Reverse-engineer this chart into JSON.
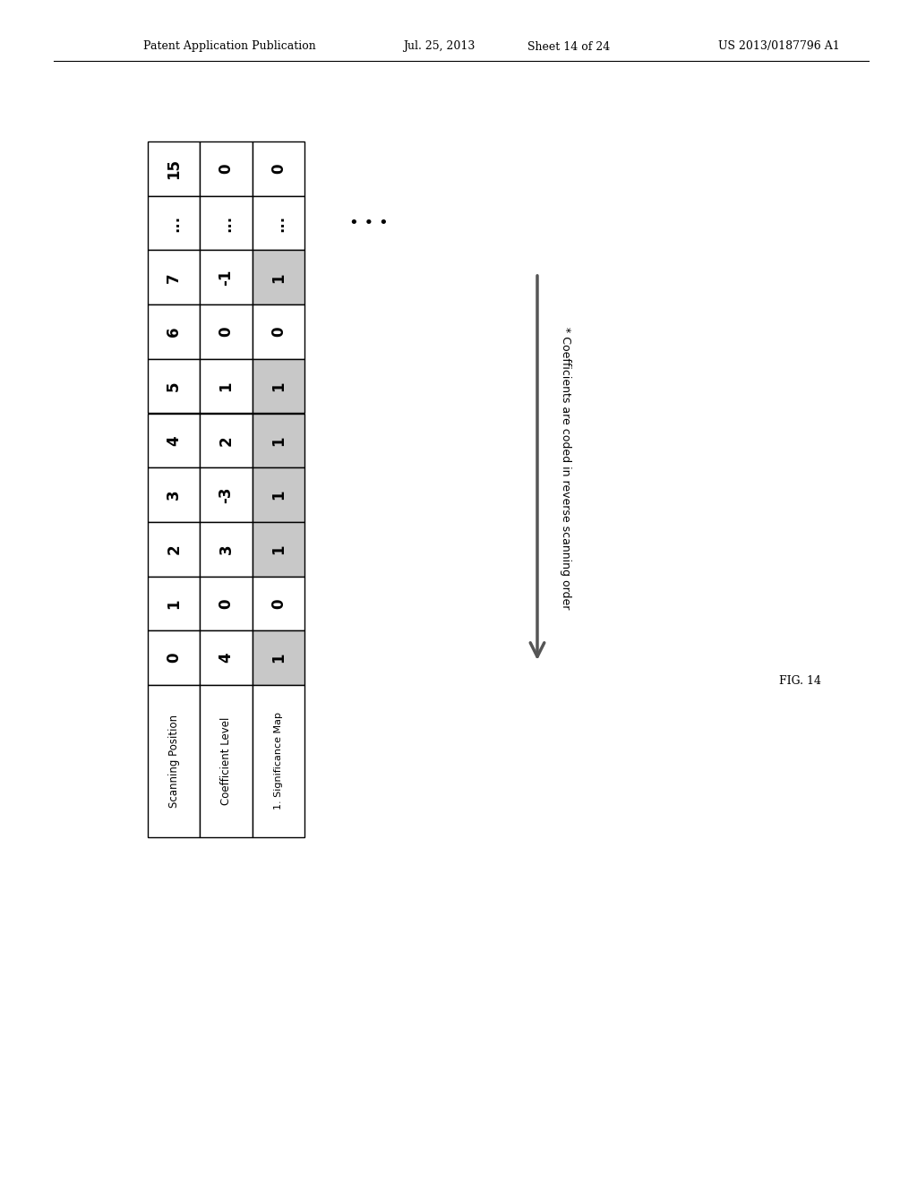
{
  "header_text": "Patent Application Publication",
  "header_date": "Jul. 25, 2013",
  "header_sheet": "Sheet 14 of 24",
  "header_patent": "US 2013/0187796 A1",
  "fig_label": "FIG. 14",
  "arrow_label": "* Coefficients are coded in reverse scanning order",
  "row_labels": [
    "Scanning Position",
    "Coefficient Level",
    "1. Significance Map"
  ],
  "col_positions": [
    "0",
    "1",
    "2",
    "3",
    "4",
    "5",
    "6",
    "7",
    "...",
    "15"
  ],
  "coeff_levels": [
    "4",
    "0",
    "3",
    "-3",
    "2",
    "1",
    "0",
    "-1",
    "...",
    "0"
  ],
  "sig_map": [
    "1",
    "0",
    "1",
    "1",
    "1",
    "1",
    "0",
    "1",
    "...",
    "0"
  ],
  "sig_map_shaded": [
    true,
    false,
    true,
    true,
    true,
    true,
    false,
    true,
    false,
    false
  ],
  "background_color": "#ffffff",
  "cell_gray": "#c8c8c8",
  "cell_white": "#ffffff",
  "border_color": "#000000"
}
